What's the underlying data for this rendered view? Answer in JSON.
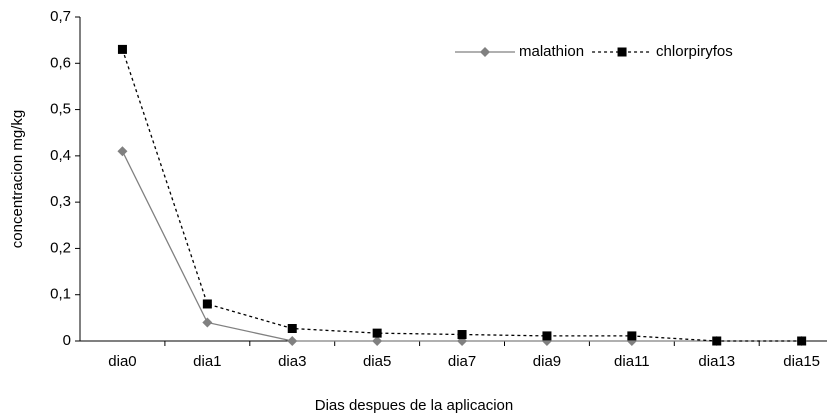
{
  "chart_data": {
    "type": "line",
    "x_label": "Dias despues de la aplicacion",
    "y_label": "concentracion mg/kg",
    "categories": [
      "dia0",
      "dia1",
      "dia3",
      "dia5",
      "dia7",
      "dia9",
      "dia11",
      "dia13",
      "dia15"
    ],
    "series": [
      {
        "name": "malathion",
        "color": "#808080",
        "marker": "diamond",
        "dash": "solid",
        "values": [
          0.41,
          0.04,
          0,
          0,
          0,
          0,
          0,
          0,
          0
        ]
      },
      {
        "name": "chlorpiryfos",
        "color": "#000000",
        "marker": "square",
        "dash": "dotted",
        "values": [
          0.63,
          0.08,
          0.027,
          0.017,
          0.014,
          0.011,
          0.011,
          0,
          0
        ]
      }
    ],
    "ylim": [
      0,
      0.7
    ],
    "yticks": [
      0,
      {
        "value": 0.1,
        "label": "0,1"
      },
      {
        "value": 0.2,
        "label": "0,2"
      },
      {
        "value": 0.3,
        "label": "0,3"
      },
      {
        "value": 0.4,
        "label": "0,4"
      },
      {
        "value": 0.5,
        "label": "0,5"
      },
      {
        "value": 0.6,
        "label": "0,6"
      },
      {
        "value": 0.7,
        "label": "0,7"
      }
    ],
    "grid": false,
    "legend": "upper right"
  }
}
